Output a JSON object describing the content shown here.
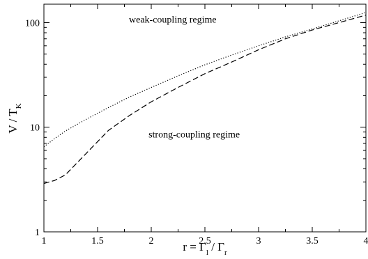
{
  "chart_data": {
    "type": "line",
    "title": "",
    "xlabel": {
      "base": "r = Γ",
      "sub1": "l",
      "mid": " / Γ",
      "sub2": "r"
    },
    "ylabel": {
      "base": "V / T",
      "sub": "K"
    },
    "xlim": [
      1,
      4
    ],
    "ylim": [
      1,
      150
    ],
    "yscale": "log",
    "grid": false,
    "legend": "none",
    "x_ticks": [
      "1",
      "1.5",
      "2",
      "2.5",
      "3",
      "3.5",
      "4"
    ],
    "y_ticks": [
      "1",
      "10",
      "100"
    ],
    "series": [
      {
        "style": "dotted",
        "color": "#000000",
        "x": [
          1.0,
          1.1,
          1.2,
          1.4,
          1.6,
          1.8,
          2.0,
          2.25,
          2.5,
          2.75,
          3.0,
          3.25,
          3.5,
          3.75,
          4.0
        ],
        "y": [
          6.5,
          7.8,
          9.2,
          12.0,
          15.4,
          19.5,
          24.0,
          31.0,
          39.5,
          49.0,
          60.0,
          73.0,
          87.0,
          104.0,
          125.0
        ]
      },
      {
        "style": "dashed",
        "color": "#000000",
        "x": [
          1.0,
          1.1,
          1.2,
          1.4,
          1.6,
          1.8,
          2.0,
          2.25,
          2.5,
          2.75,
          3.0,
          3.25,
          3.5,
          3.75,
          4.0
        ],
        "y": [
          2.9,
          3.1,
          3.5,
          5.7,
          9.3,
          13.0,
          17.5,
          24.0,
          32.5,
          42.0,
          55.0,
          70.0,
          85.0,
          100.0,
          118.0
        ]
      }
    ],
    "annotations": [
      {
        "text": "weak-coupling regime",
        "x": 2.2,
        "y": 100
      },
      {
        "text": "strong-coupling regime",
        "x": 2.4,
        "y": 8
      }
    ]
  }
}
